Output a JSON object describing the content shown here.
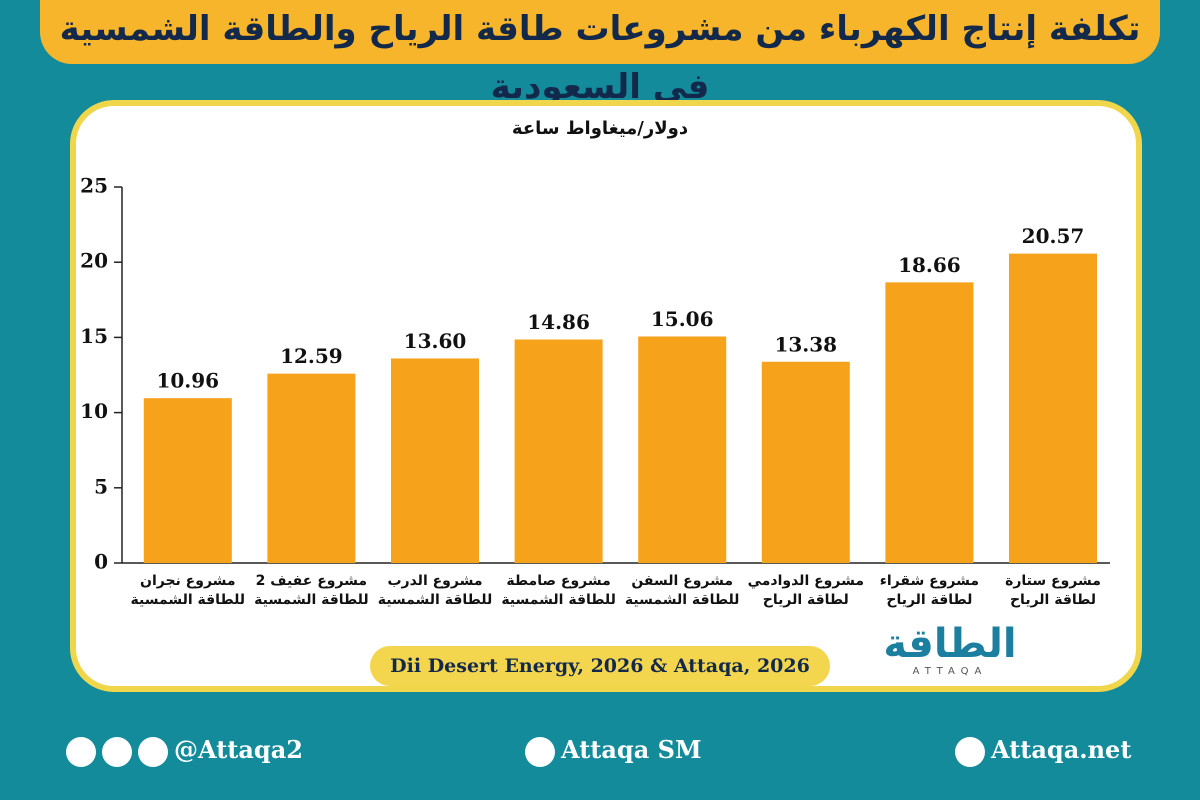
{
  "header": {
    "title": "تكلفة إنتاج الكهرباء من مشروعات طاقة الرياح والطاقة الشمسية في السعودية"
  },
  "chart_data": {
    "type": "bar",
    "y_label": "دولار/ميغاواط ساعة",
    "categories": [
      "مشروع نجران\nللطاقة الشمسية",
      "مشروع عفيف 2\nللطاقة الشمسية",
      "مشروع الدرب\nللطاقة الشمسية",
      "مشروع صامطة\nللطاقة الشمسية",
      "مشروع السفن\nللطاقة الشمسية",
      "مشروع الدوادمي\nلطاقة الرياح",
      "مشروع شقراء\nلطاقة الرياح",
      "مشروع ستارة\nلطاقة الرياح"
    ],
    "values": [
      10.96,
      12.59,
      13.6,
      14.86,
      15.06,
      13.38,
      18.66,
      20.57
    ],
    "value_labels": [
      "10.96",
      "12.59",
      "13.60",
      "14.86",
      "15.06",
      "13.38",
      "18.66",
      "20.57"
    ],
    "color": "#f7a21b",
    "ylim": [
      0,
      25
    ],
    "yticks": [
      0,
      5,
      10,
      15,
      20,
      25
    ],
    "source": "Dii Desert Energy, 2026 & Attaqa, 2026"
  },
  "logo": {
    "arabic": "الطاقة",
    "latin": "ATTAQA"
  },
  "footer": {
    "social": "@Attaqa2",
    "youtube": "Attaqa SM",
    "website": "Attaqa.net"
  }
}
